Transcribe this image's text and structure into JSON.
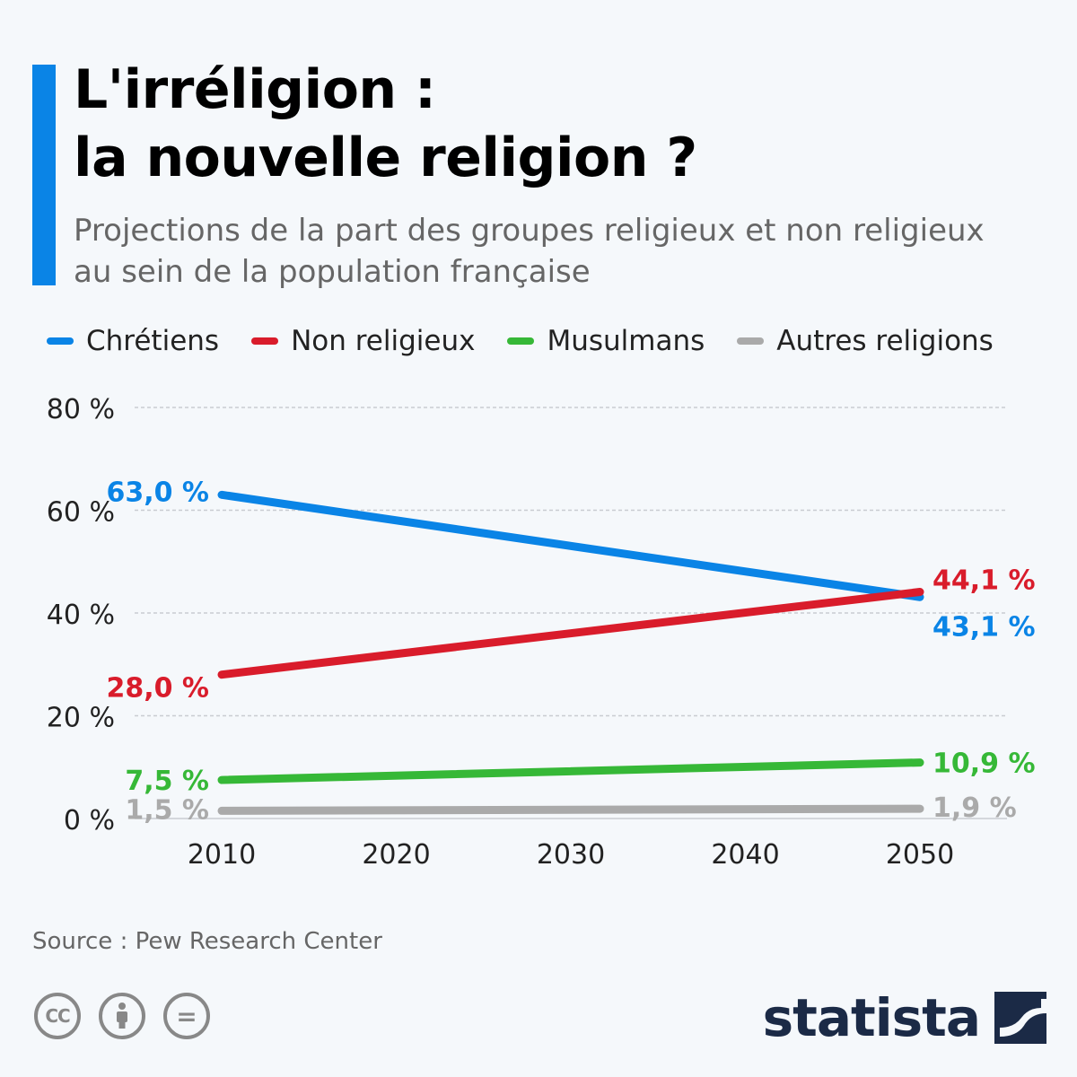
{
  "title": {
    "line1": "L'irréligion :",
    "line2": "la nouvelle religion ?"
  },
  "subtitle": "Projections de la part des groupes religieux et non religieux au sein de la population française",
  "legend": [
    {
      "label": "Chrétiens",
      "color": "#0a84e6"
    },
    {
      "label": "Non religieux",
      "color": "#d91c2b"
    },
    {
      "label": "Musulmans",
      "color": "#36b837"
    },
    {
      "label": "Autres religions",
      "color": "#aaaaaa"
    }
  ],
  "chart_data": {
    "type": "line",
    "x": [
      2010,
      2050
    ],
    "xticks": [
      "2010",
      "2020",
      "2030",
      "2040",
      "2050"
    ],
    "yticks": [
      "0 %",
      "20 %",
      "40 %",
      "60 %",
      "80 %"
    ],
    "ylim": [
      0,
      80
    ],
    "xlim": [
      2010,
      2050
    ],
    "grid": true,
    "legend_position": "top",
    "series": [
      {
        "name": "Chrétiens",
        "color": "#0a84e6",
        "values": [
          63.0,
          43.1
        ],
        "labels": [
          "63,0 %",
          "43,1 %"
        ]
      },
      {
        "name": "Non religieux",
        "color": "#d91c2b",
        "values": [
          28.0,
          44.1
        ],
        "labels": [
          "28,0 %",
          "44,1 %"
        ]
      },
      {
        "name": "Musulmans",
        "color": "#36b837",
        "values": [
          7.5,
          10.9
        ],
        "labels": [
          "7,5 %",
          "10,9 %"
        ]
      },
      {
        "name": "Autres religions",
        "color": "#aaaaaa",
        "values": [
          1.5,
          1.9
        ],
        "labels": [
          "1,5 %",
          "1,9 %"
        ]
      }
    ]
  },
  "source": "Source : Pew Research Center",
  "license_icons": [
    {
      "name": "cc-icon",
      "text": "CC"
    },
    {
      "name": "attribution-icon",
      "text": ""
    },
    {
      "name": "no-derivatives-icon",
      "text": "="
    }
  ],
  "brand": {
    "logo_text": "statista"
  }
}
